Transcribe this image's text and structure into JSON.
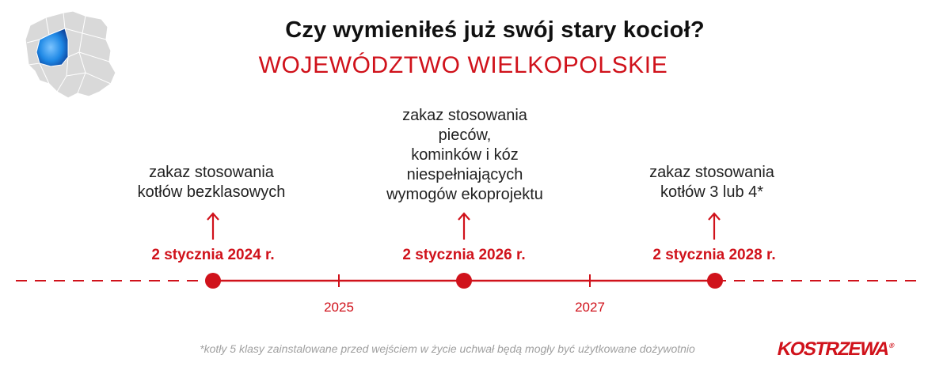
{
  "header": {
    "title": "Czy wymieniłeś już swój stary kocioł?",
    "subtitle": "WOJEWÓDZTWO WIELKOPOLSKIE"
  },
  "map": {
    "icon": "poland-map-icon",
    "highlight_color": "#1e88e5",
    "base_color": "#d9d9d9"
  },
  "timeline": {
    "accent_color": "#d0121b",
    "events": [
      {
        "text_lines": [
          "zakaz stosowania",
          "kotłów bezklasowych"
        ],
        "date": "2 stycznia 2024 r."
      },
      {
        "text_lines": [
          "zakaz stosowania",
          "pieców,",
          "kominków i kóz",
          "niespełniających",
          "wymogów ekoprojektu"
        ],
        "date": "2 stycznia 2026 r."
      },
      {
        "text_lines": [
          "zakaz stosowania",
          "kotłów 3 lub 4*"
        ],
        "date": "2 stycznia 2028 r."
      }
    ],
    "year_labels": [
      "2025",
      "2027"
    ]
  },
  "footnote": "*kotły  5 klasy zainstalowane przed wejściem w życie uchwał będą mogły być użytkowane dożywotnio",
  "logo": {
    "text": "KOSTRZEWA",
    "registered": "®"
  }
}
